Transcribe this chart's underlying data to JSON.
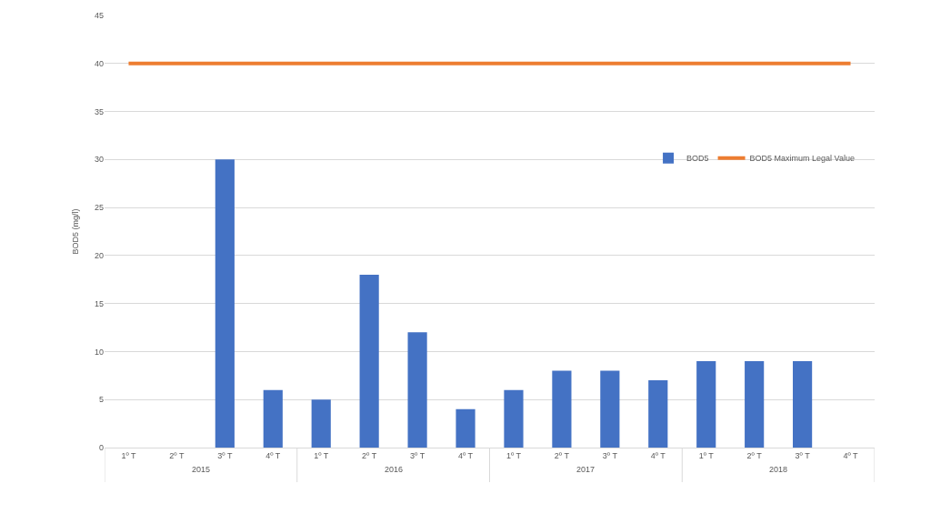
{
  "chart_data": {
    "type": "bar",
    "ylabel": "BOD5 (mg/l)",
    "categories": [
      "1º T",
      "2º T",
      "3º T",
      "4º T",
      "1º T",
      "2º T",
      "3º T",
      "4º T",
      "1º T",
      "2º T",
      "3º T",
      "4º T",
      "1º T",
      "2º T",
      "3º T",
      "4º T"
    ],
    "series": [
      {
        "name": "BOD5",
        "color": "#4472c4",
        "values": [
          null,
          null,
          30,
          6,
          5,
          18,
          12,
          4,
          6,
          8,
          8,
          7,
          9,
          9,
          9,
          null
        ]
      },
      {
        "name": "BOD5 Maximum Legal Value",
        "type": "line",
        "color": "#ed7d31",
        "marker": "none",
        "values": [
          40,
          40,
          40,
          40,
          40,
          40,
          40,
          40,
          40,
          40,
          40,
          40,
          40,
          40,
          40,
          40
        ]
      }
    ],
    "annotations": [
      "2015",
      "2016",
      "2017",
      "2018"
    ],
    "ylim": [
      0,
      45
    ],
    "yticks": [
      0,
      5,
      10,
      15,
      20,
      25,
      30,
      35,
      40,
      45
    ],
    "grid": "y",
    "legend": "top right"
  }
}
